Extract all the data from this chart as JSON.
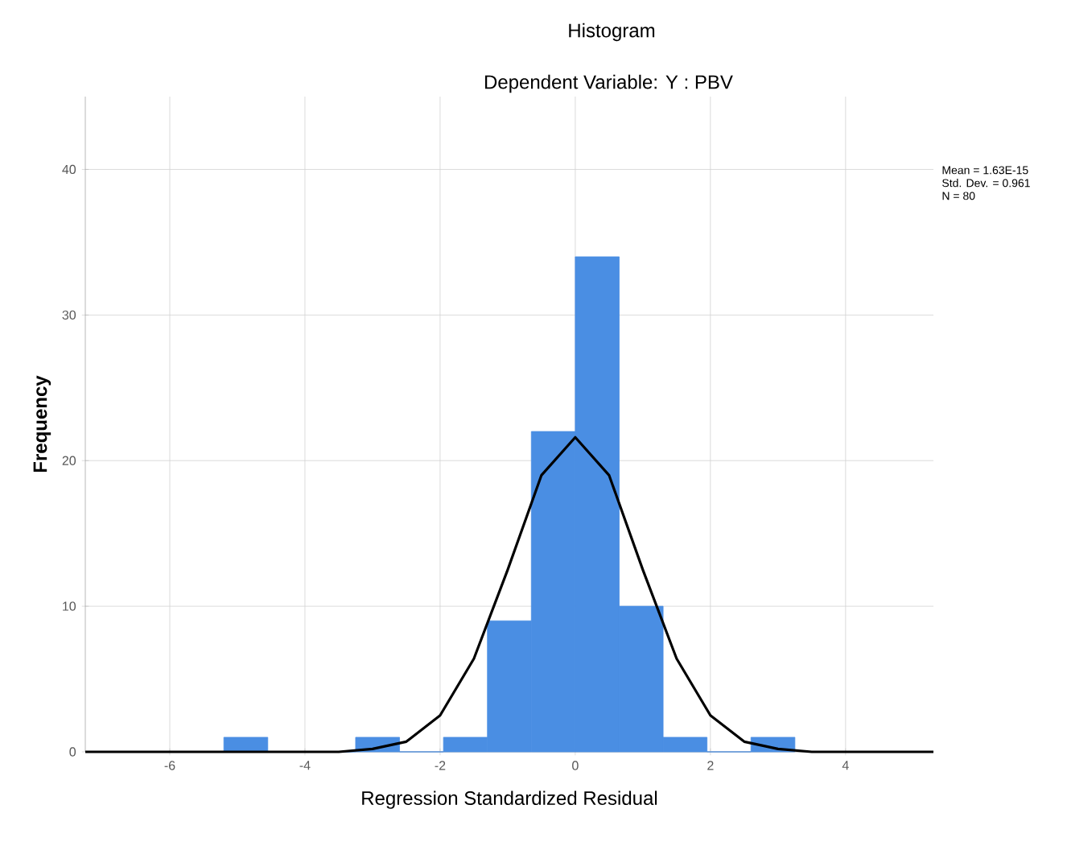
{
  "chart_data": {
    "type": "histogram",
    "title": "Histogram",
    "subtitle": "Dependent Variable: Y : PBV",
    "xlabel": "Regression Standardized Residual",
    "ylabel": "Frequency",
    "annotations": [
      "Mean = 1.63E-15",
      "Std. Dev. = 0.961",
      "N = 80"
    ],
    "xlim": [
      -7.25,
      5.3
    ],
    "ylim": [
      0,
      45
    ],
    "xticks": [
      -6,
      -4,
      -2,
      0,
      2,
      4
    ],
    "yticks": [
      0,
      10,
      20,
      30,
      40
    ],
    "grid": true,
    "series": [
      {
        "color": "#4a8ee3",
        "bins": [
          -5.2,
          -4.55,
          -3.9,
          -3.25,
          -2.6,
          -1.95,
          -1.3,
          -0.65,
          0,
          0.65,
          1.3,
          1.95,
          2.6,
          3.25
        ],
        "values": [
          1,
          0,
          0,
          1,
          0,
          1,
          9,
          22,
          34,
          10,
          1,
          0,
          1
        ]
      },
      {
        "type": "line",
        "color": "#000000",
        "x": [
          -7.25,
          -4.5,
          -4,
          -3.5,
          -3,
          -2.5,
          -2,
          -1.5,
          -1,
          -0.5,
          0,
          0.5,
          1,
          1.5,
          2,
          2.5,
          3,
          3.5,
          4,
          5.3
        ],
        "values": [
          0,
          0,
          0,
          0,
          0.2,
          0.7,
          2.5,
          6.4,
          12.5,
          19,
          21.6,
          19,
          12.5,
          6.4,
          2.5,
          0.7,
          0.2,
          0,
          0,
          0
        ]
      }
    ]
  }
}
